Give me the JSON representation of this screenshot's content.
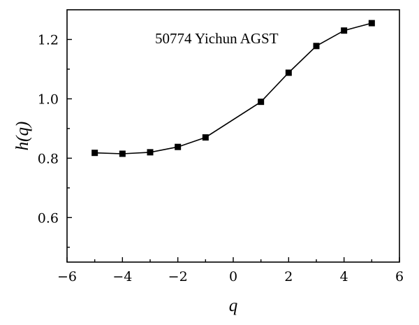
{
  "chart_data": {
    "type": "line",
    "title": "",
    "annotation": "50774 Yichun AGST",
    "xlabel": "q",
    "ylabel": "h(q)",
    "xlim": [
      -6,
      6
    ],
    "ylim": [
      0.45,
      1.3
    ],
    "x_ticks": [
      -6,
      -4,
      -2,
      0,
      2,
      4,
      6
    ],
    "x_tick_labels": [
      "−6",
      "−4",
      "−2",
      "0",
      "2",
      "4",
      "6"
    ],
    "y_ticks": [
      0.6,
      0.8,
      1.0,
      1.2
    ],
    "y_tick_labels": [
      "0.6",
      "0.8",
      "1.0",
      "1.2"
    ],
    "grid": false,
    "legend": "none",
    "series": [
      {
        "marker": "square",
        "color": "#000000",
        "x": [
          -5,
          -4,
          -3,
          -2,
          -1,
          1,
          2,
          3,
          4,
          5
        ],
        "y": [
          0.818,
          0.815,
          0.82,
          0.838,
          0.87,
          0.99,
          1.088,
          1.178,
          1.23,
          1.255
        ]
      }
    ]
  }
}
